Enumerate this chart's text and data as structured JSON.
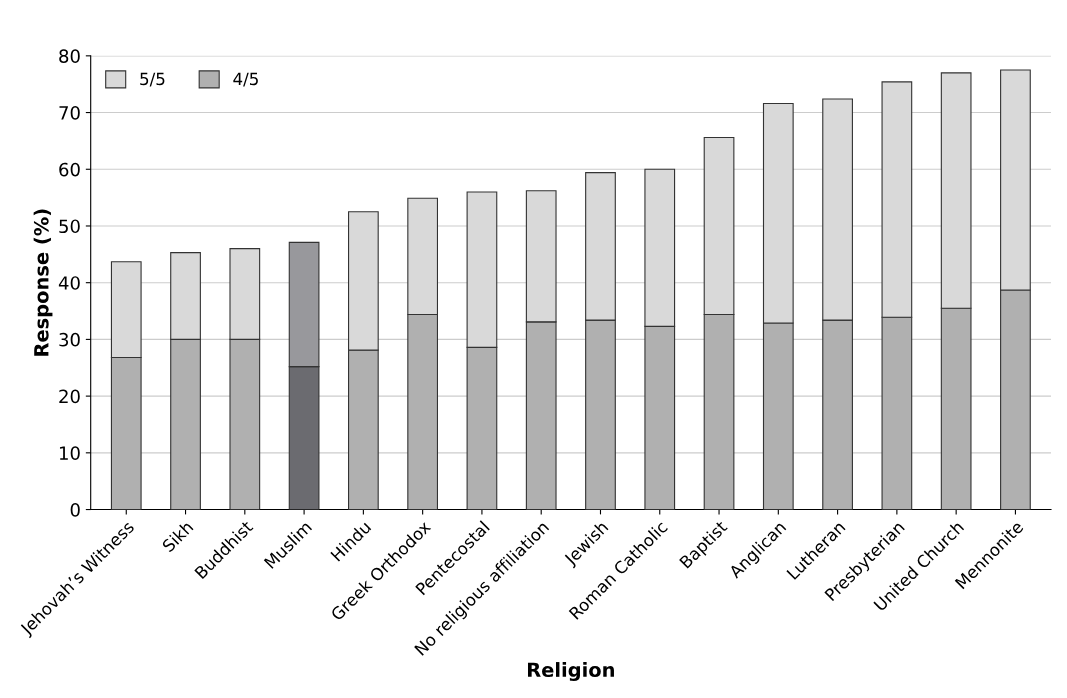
{
  "chart_data": {
    "type": "bar",
    "stacked": true,
    "xlabel": "Religion",
    "ylabel": "Response (%)",
    "categories": [
      "Jehovah’s Witness",
      "Sikh",
      "Buddhist",
      "Muslim",
      "Hindu",
      "Greek Orthodox",
      "Pentecostal",
      "No religious affiliation",
      "Jewish",
      "Roman Catholic",
      "Baptist",
      "Anglican",
      "Lutheran",
      "Presbyterian",
      "United Church",
      "Mennonite"
    ],
    "series": [
      {
        "name": "4/5",
        "color": "#b0b0b0",
        "colors": [
          "#b0b0b0",
          "#b0b0b0",
          "#b0b0b0",
          "#6b6b70",
          "#b0b0b0",
          "#b0b0b0",
          "#b0b0b0",
          "#b0b0b0",
          "#b0b0b0",
          "#b0b0b0",
          "#b0b0b0",
          "#b0b0b0",
          "#b0b0b0",
          "#b0b0b0",
          "#b0b0b0",
          "#b0b0b0"
        ],
        "values": [
          26.8,
          30,
          30,
          25.2,
          28.1,
          34.4,
          28.6,
          33.1,
          33.4,
          32.3,
          34.4,
          32.9,
          33.4,
          33.9,
          35.5,
          38.7
        ]
      },
      {
        "name": "5/5",
        "color": "#d9d9d9",
        "colors": [
          "#d9d9d9",
          "#d9d9d9",
          "#d9d9d9",
          "#98989c",
          "#d9d9d9",
          "#d9d9d9",
          "#d9d9d9",
          "#d9d9d9",
          "#d9d9d9",
          "#d9d9d9",
          "#d9d9d9",
          "#d9d9d9",
          "#d9d9d9",
          "#d9d9d9",
          "#d9d9d9",
          "#d9d9d9"
        ],
        "values": [
          16.9,
          15.3,
          16,
          21.9,
          24.4,
          20.5,
          27.4,
          23.1,
          26,
          27.7,
          31.2,
          38.7,
          39,
          41.5,
          41.5,
          38.8
        ]
      }
    ],
    "ylim": [
      0,
      80
    ],
    "yticks": [
      0,
      10,
      20,
      30,
      40,
      50,
      60,
      70,
      80
    ],
    "grid": "y",
    "legend": "top left"
  }
}
